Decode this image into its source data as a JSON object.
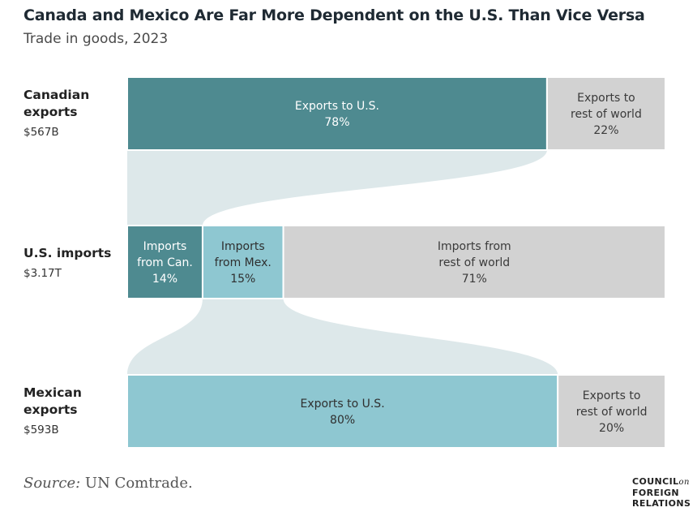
{
  "title": "Canada and Mexico Are Far More Dependent on the U.S. Than Vice Versa",
  "subtitle": "Trade in goods, 2023",
  "rows": [
    {
      "name_lines": [
        "Canadian",
        "exports"
      ],
      "value": "$567B"
    },
    {
      "name_lines": [
        "U.S. imports"
      ],
      "value": "$3.17T"
    },
    {
      "name_lines": [
        "Mexican",
        "exports"
      ],
      "value": "$593B"
    }
  ],
  "chart_data": {
    "type": "bar",
    "orientation": "horizontal-stacked-100%",
    "title": "Canada and Mexico Are Far More Dependent on the U.S. Than Vice Versa",
    "subtitle": "Trade in goods, 2023",
    "bars": [
      {
        "label": "Canadian exports",
        "total": "$567B",
        "segments": [
          {
            "label_lines": [
              "Exports to U.S."
            ],
            "pct_text": "78%",
            "value": 78,
            "color": "#4e8a90",
            "text_color": "#ffffff"
          },
          {
            "label_lines": [
              "Exports to",
              "rest of world"
            ],
            "pct_text": "22%",
            "value": 22,
            "color": "#d2d2d2",
            "text_color": "#3a3a3a"
          }
        ]
      },
      {
        "label": "U.S. imports",
        "total": "$3.17T",
        "segments": [
          {
            "label_lines": [
              "Imports",
              "from Can."
            ],
            "pct_text": "14%",
            "value": 14,
            "color": "#4e8a90",
            "text_color": "#ffffff"
          },
          {
            "label_lines": [
              "Imports",
              "from Mex."
            ],
            "pct_text": "15%",
            "value": 15,
            "color": "#8ec7d1",
            "text_color": "#2f2f2f"
          },
          {
            "label_lines": [
              "Imports from",
              "rest of world"
            ],
            "pct_text": "71%",
            "value": 71,
            "color": "#d2d2d2",
            "text_color": "#3a3a3a"
          }
        ]
      },
      {
        "label": "Mexican exports",
        "total": "$593B",
        "segments": [
          {
            "label_lines": [
              "Exports to U.S."
            ],
            "pct_text": "80%",
            "value": 80,
            "color": "#8ec7d1",
            "text_color": "#2f2f2f"
          },
          {
            "label_lines": [
              "Exports to",
              "rest of world"
            ],
            "pct_text": "20%",
            "value": 20,
            "color": "#d2d2d2",
            "text_color": "#3a3a3a"
          }
        ]
      }
    ],
    "flows": [
      {
        "from_bar": 0,
        "from_segment": 0,
        "to_bar": 1,
        "to_segment": 0,
        "color": "#dde8ea"
      },
      {
        "from_bar": 2,
        "from_segment": 0,
        "to_bar": 1,
        "to_segment": 1,
        "color": "#dde8ea"
      }
    ]
  },
  "source": {
    "label": "Source:",
    "text": "UN Comtrade."
  },
  "logo": {
    "line1": "COUNCIL",
    "on": "on",
    "line2": "FOREIGN",
    "line3": "RELATIONS"
  }
}
